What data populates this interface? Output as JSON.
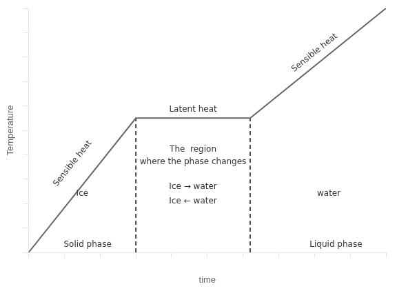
{
  "chart_data": {
    "type": "line",
    "xlabel": "time",
    "ylabel": "Temperature",
    "xlim": [
      0,
      10
    ],
    "ylim": [
      0,
      10
    ],
    "xticks": [
      0,
      1,
      2,
      3,
      4,
      5,
      6,
      7,
      8,
      9,
      10
    ],
    "yticks": [
      0,
      1,
      2,
      3,
      4,
      5,
      6,
      7,
      8,
      9,
      10
    ],
    "tick_labels": false,
    "grid": false,
    "series": [
      {
        "x": [
          0,
          3.0,
          6.2,
          10
        ],
        "values": [
          0,
          5.5,
          5.5,
          10
        ],
        "color": "#666666",
        "line_style": "solid"
      },
      {
        "x": [
          3.0,
          3.0
        ],
        "values": [
          0,
          5.5
        ],
        "color": "#111111",
        "line_style": "dashed"
      },
      {
        "x": [
          6.2,
          6.2
        ],
        "values": [
          0,
          5.5
        ],
        "color": "#111111",
        "line_style": "dashed"
      }
    ],
    "annotations": [
      {
        "text": "Latent heat",
        "x": 4.6,
        "y": 5.85
      },
      {
        "text": "Sensible heat",
        "x": 1.35,
        "y": 3.5
      },
      {
        "text": "Sensible heat",
        "x": 8.1,
        "y": 8.0
      },
      {
        "text": "Ice",
        "x": 1.5,
        "y": 2.4
      },
      {
        "text": "water",
        "x": 8.4,
        "y": 2.4
      },
      {
        "text": "The  region",
        "x": 4.6,
        "y": 4.2
      },
      {
        "text": "where the phase changes",
        "x": 4.6,
        "y": 3.7
      },
      {
        "text": "Ice → water",
        "x": 4.6,
        "y": 2.7
      },
      {
        "text": "Ice ← water",
        "x": 4.6,
        "y": 2.1
      },
      {
        "text": "Solid phase",
        "x": 1.65,
        "y": 0.15
      },
      {
        "text": "Liquid phase",
        "x": 8.6,
        "y": 0.15
      }
    ]
  }
}
